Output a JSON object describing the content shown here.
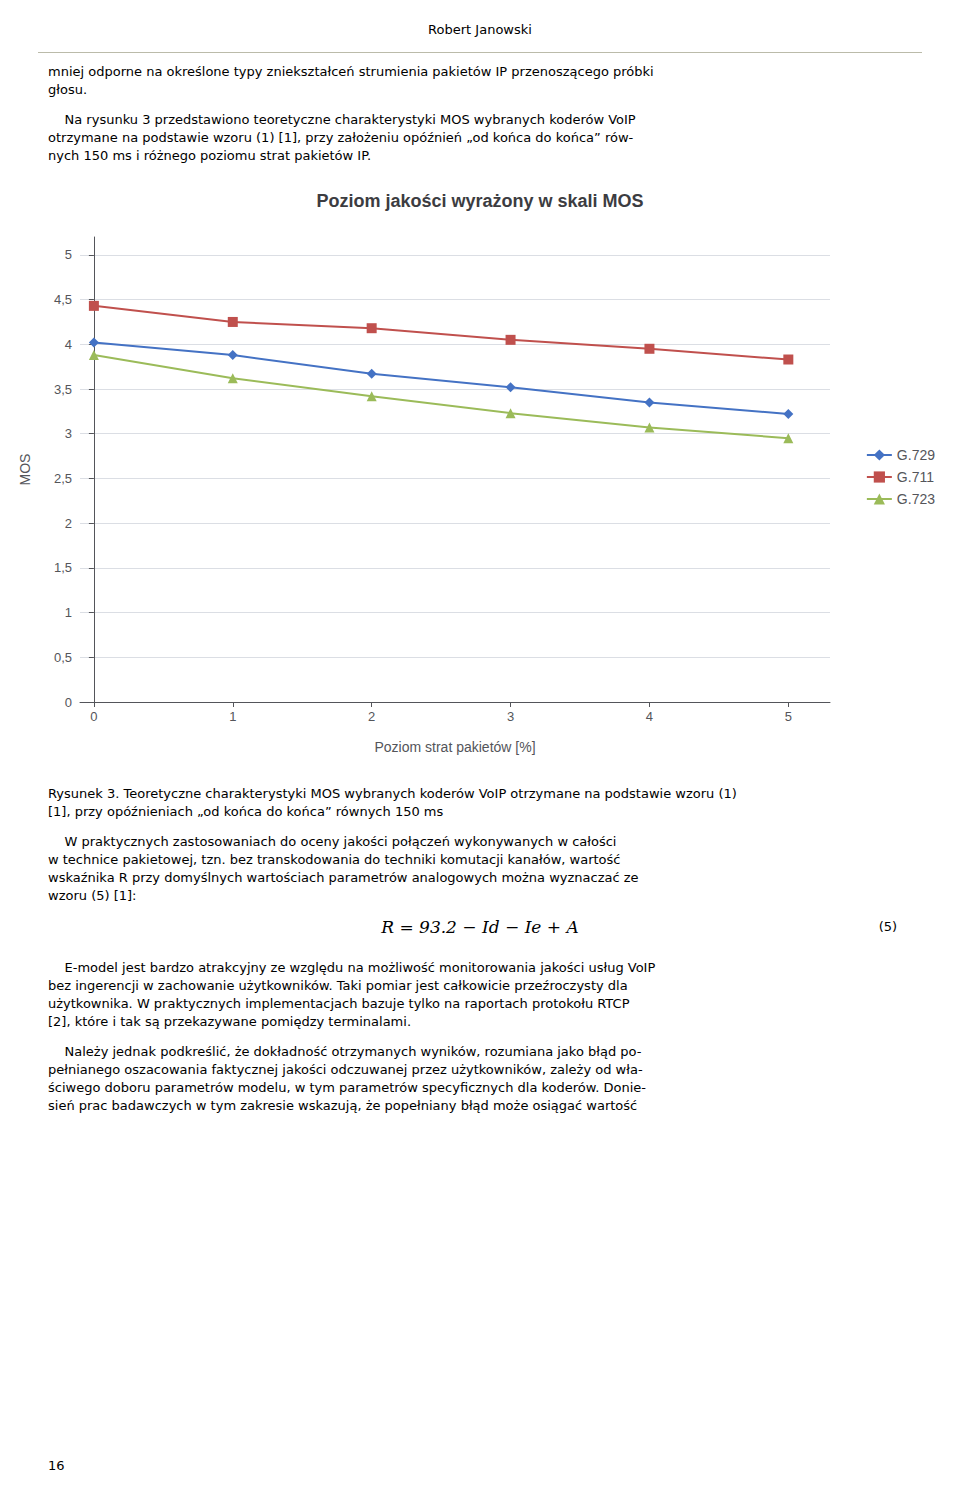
{
  "chart_data": {
    "type": "line",
    "title": "Poziom jakości wyrażony w skali MOS",
    "xlabel": "Poziom strat pakietów [%]",
    "ylabel": "MOS",
    "x": [
      0,
      1,
      2,
      3,
      4,
      5
    ],
    "series": [
      {
        "name": "G.729",
        "color": "#4472C4",
        "marker": "diamond",
        "values": [
          4.02,
          3.88,
          3.67,
          3.52,
          3.35,
          3.22
        ]
      },
      {
        "name": "G.711",
        "color": "#C0504D",
        "marker": "square",
        "values": [
          4.43,
          4.25,
          4.18,
          4.05,
          3.95,
          3.83
        ]
      },
      {
        "name": "G.723",
        "color": "#9BBB59",
        "marker": "triangle",
        "values": [
          3.88,
          3.62,
          3.42,
          3.23,
          3.07,
          2.95
        ]
      }
    ],
    "xlim": [
      -0.1,
      5.3
    ],
    "xticks": [
      0,
      1,
      2,
      3,
      4,
      5
    ],
    "ylim": [
      0,
      5.2
    ],
    "yticks": [
      0,
      {
        "value": 0.5,
        "label": "0,5"
      },
      1,
      {
        "value": 1.5,
        "label": "1,5"
      },
      2,
      {
        "value": 2.5,
        "label": "2,5"
      },
      3,
      {
        "value": 3.5,
        "label": "3,5"
      },
      4,
      {
        "value": 4.5,
        "label": "4,5"
      },
      5
    ],
    "grid": true,
    "legend": "right"
  },
  "header": "Robert Janowski",
  "before_chart": [
    [
      "mniej odporne na określone typy zniekształceń strumienia pakietów IP przenoszącego próbki",
      "głosu."
    ],
    [
      "    Na rysunku 3 przedstawiono teoretyczne charakterystyki MOS wybranych koderów VoIP",
      "otrzymane na podstawie wzoru (1) [1], przy założeniu opóźnień „od końca do końca” rów-",
      "nych 150 ms i różnego poziomu strat pakietów IP."
    ]
  ],
  "caption": [
    "Rysunek 3. Teoretyczne charakterystyki MOS wybranych koderów VoIP otrzymane na podstawie wzoru (1)",
    "[1], przy opóźnieniach „od końca do końca” równych 150 ms"
  ],
  "after_caption": [
    [
      "    W praktycznych zastosowaniach do oceny jakości połączeń wykonywanych w całości",
      "w technice pakietowej, tzn. bez transkodowania do techniki komutacji kanałów, wartość",
      "wskaźnika R przy domyślnych wartościach parametrów analogowych można wyznaczać ze",
      "wzoru (5) [1]:"
    ]
  ],
  "formula": "R = 93.2 − Id − Ie + A",
  "formula_label": "(5)",
  "after_formula": [
    [
      "    E-model jest bardzo atrakcyjny ze względu na możliwość monitorowania jakości usług VoIP",
      "bez ingerencji w zachowanie użytkowników. Taki pomiar jest całkowicie przeźroczysty dla",
      "użytkownika. W praktycznych implementacjach bazuje tylko na raportach protokołu RTCP",
      "[2], które i tak są przekazywane pomiędzy terminalami."
    ],
    [
      "    Należy jednak podkreślić, że dokładność otrzymanych wyników, rozumiana jako błąd po-",
      "pełnianego oszacowania faktycznej jakości odczuwanej przez użytkowników, zależy od wła-",
      "ściwego doboru parametrów modelu, w tym parametrów specyficznych dla koderów. Donie-",
      "sień prac badawczych w tym zakresie wskazują, że popełniany błąd może osiągać wartość"
    ]
  ],
  "page_number": "16"
}
